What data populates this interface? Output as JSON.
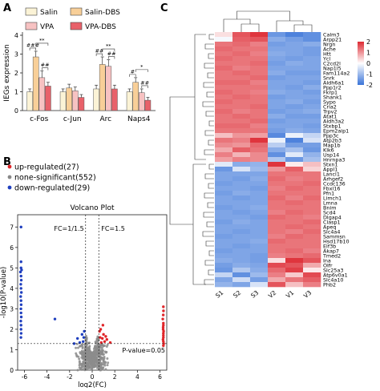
{
  "panels": {
    "a": "A",
    "b": "B",
    "c": "C"
  },
  "chart_data": [
    {
      "panel": "A",
      "type": "bar",
      "ylabel": "IEGs expression",
      "ylim": [
        0,
        4
      ],
      "yticks": [
        0,
        1,
        2,
        3,
        4
      ],
      "categories": [
        "c-Fos",
        "c-Jun",
        "Arc",
        "Naps4"
      ],
      "series": [
        {
          "name": "Salin",
          "color": "#fbf3d6",
          "values": [
            1.0,
            1.0,
            1.15,
            1.0
          ],
          "errors": [
            0.15,
            0.15,
            0.2,
            0.15
          ]
        },
        {
          "name": "Salin-DBS",
          "color": "#f8cf98",
          "values": [
            2.85,
            1.2,
            2.45,
            1.5
          ],
          "errors": [
            0.3,
            0.2,
            0.4,
            0.25
          ]
        },
        {
          "name": "VPA",
          "color": "#f7c2c2",
          "values": [
            1.75,
            1.05,
            2.35,
            0.95
          ],
          "errors": [
            0.35,
            0.2,
            0.35,
            0.2
          ]
        },
        {
          "name": "VPA-DBS",
          "color": "#e8616a",
          "values": [
            1.3,
            0.7,
            1.15,
            0.55
          ],
          "errors": [
            0.2,
            0.15,
            0.2,
            0.15
          ]
        }
      ],
      "significance": [
        {
          "category": "c-Fos",
          "label": "###"
        },
        {
          "category": "c-Fos",
          "label": "**"
        },
        {
          "category": "c-Fos",
          "label": "##"
        },
        {
          "category": "Arc",
          "label": "##"
        },
        {
          "category": "Arc",
          "label": "**"
        },
        {
          "category": "Arc",
          "label": "##"
        },
        {
          "category": "Naps4",
          "label": "#"
        },
        {
          "category": "Naps4",
          "label": "*"
        },
        {
          "category": "Naps4",
          "label": "##"
        }
      ]
    },
    {
      "panel": "B",
      "type": "scatter",
      "title": "Volcano Plot",
      "xlabel": "log2(FC)",
      "ylabel": "-log10(P-value)",
      "xlim": [
        -6.6,
        6.6
      ],
      "ylim": [
        0,
        7.6
      ],
      "xticks": [
        -6,
        -4,
        -2,
        0,
        2,
        4,
        6
      ],
      "yticks": [
        0,
        1,
        2,
        3,
        4,
        5,
        6,
        7
      ],
      "legend": [
        {
          "label": "up-regulated(27)",
          "color": "#e0262a"
        },
        {
          "label": "none-significant(552)",
          "color": "#888888"
        },
        {
          "label": "down-regulated(29)",
          "color": "#1f3fbf"
        }
      ],
      "thresholds": {
        "fc_low_label": "FC=1/1.5",
        "fc_high_label": "FC=1.5",
        "fc_low": -0.585,
        "fc_high": 0.585,
        "p_label": "P-value=0.05",
        "p": 1.3
      },
      "down_points": [
        [
          -6.3,
          5.0
        ],
        [
          -6.25,
          4.9
        ],
        [
          -6.35,
          4.8
        ],
        [
          -6.3,
          4.6
        ],
        [
          -6.28,
          4.4
        ],
        [
          -6.32,
          4.2
        ],
        [
          -6.3,
          4.0
        ],
        [
          -6.27,
          3.8
        ],
        [
          -6.33,
          3.6
        ],
        [
          -6.3,
          3.4
        ],
        [
          -6.29,
          3.2
        ],
        [
          -6.31,
          3.0
        ],
        [
          -6.3,
          2.8
        ],
        [
          -6.28,
          2.6
        ],
        [
          -6.32,
          2.4
        ],
        [
          -6.3,
          2.2
        ],
        [
          -6.3,
          2.0
        ],
        [
          -6.29,
          1.8
        ],
        [
          -6.31,
          1.6
        ],
        [
          -6.3,
          7.0
        ],
        [
          -6.3,
          5.3
        ],
        [
          -3.3,
          2.5
        ],
        [
          -1.3,
          1.55
        ],
        [
          -1.1,
          1.35
        ],
        [
          -0.9,
          1.75
        ],
        [
          -0.8,
          1.4
        ],
        [
          -1.6,
          1.3
        ],
        [
          -0.75,
          1.6
        ],
        [
          -0.7,
          1.9
        ]
      ],
      "up_points": [
        [
          6.25,
          2.5
        ],
        [
          6.3,
          2.3
        ],
        [
          6.28,
          2.1
        ],
        [
          6.32,
          1.9
        ],
        [
          6.3,
          1.7
        ],
        [
          6.27,
          1.5
        ],
        [
          6.33,
          1.3
        ],
        [
          6.3,
          1.2
        ],
        [
          6.29,
          2.7
        ],
        [
          6.31,
          2.9
        ],
        [
          6.3,
          3.1
        ],
        [
          6.28,
          2.0
        ],
        [
          6.3,
          1.4
        ],
        [
          6.3,
          1.8
        ],
        [
          6.3,
          1.6
        ],
        [
          6.3,
          2.2
        ],
        [
          0.7,
          1.6
        ],
        [
          0.8,
          1.35
        ],
        [
          0.9,
          1.55
        ],
        [
          1.0,
          1.75
        ],
        [
          1.1,
          1.4
        ],
        [
          1.3,
          1.5
        ],
        [
          0.65,
          1.9
        ],
        [
          0.75,
          2.0
        ],
        [
          1.6,
          1.35
        ],
        [
          1.2,
          1.65
        ],
        [
          0.95,
          2.2
        ]
      ]
    },
    {
      "panel": "C",
      "type": "heatmap",
      "columns": [
        "S1",
        "S2",
        "S3",
        "V2",
        "V1",
        "V3"
      ],
      "rows": [
        "Calm3",
        "Arpp21",
        "Nrgn",
        "Ache",
        "Htt",
        "Ycl",
        "C2cd2l",
        "Nap1l5",
        "Fam114a2",
        "Snrk",
        "Aldh6a1",
        "Ppp1r2",
        "Fkrp1",
        "Shank1",
        "Sypo",
        "Cria2",
        "Trpv2",
        "Atat1",
        "Aldh3a2",
        "Stxbp1",
        "Epm2aip1",
        "Ppp3c",
        "Atp2b3",
        "Map1b",
        "Klk6",
        "Usp14",
        "Hnrnpa3",
        "Stxn1",
        "Appl1",
        "Lancl1",
        "Arhgef2",
        "Ccdc136",
        "Fbxl16",
        "Pfn1",
        "Limch1",
        "Lmna",
        "Bnim",
        "Scd4",
        "Dlgap4",
        "Clasp1",
        "Apeq",
        "Slc4a4",
        "Sammsn",
        "Hsd17b10",
        "Elf3b",
        "Akap7",
        "Tmed2",
        "Ina",
        "Olfr",
        "Slc25a3",
        "Atp6v0a1",
        "Slc4a10",
        "Phb2"
      ],
      "values": [
        [
          0.3,
          1.6,
          1.9,
          -1.5,
          -1.8,
          -1.6
        ],
        [
          -0.1,
          1.5,
          1.6,
          -1.2,
          -1.4,
          -1.6
        ],
        [
          1.3,
          1.4,
          1.2,
          -1.4,
          -1.3,
          -1.2
        ],
        [
          1.4,
          1.3,
          1.3,
          -1.3,
          -1.3,
          -1.4
        ],
        [
          1.3,
          1.4,
          1.2,
          -1.2,
          -1.3,
          -1.4
        ],
        [
          1.4,
          1.3,
          1.3,
          -1.3,
          -1.4,
          -1.3
        ],
        [
          1.3,
          1.3,
          1.4,
          -1.4,
          -1.2,
          -1.3
        ],
        [
          1.4,
          1.2,
          1.3,
          -1.3,
          -1.3,
          -1.3
        ],
        [
          1.3,
          1.4,
          1.3,
          -1.2,
          -1.4,
          -1.4
        ],
        [
          1.3,
          1.3,
          1.4,
          -1.4,
          -1.3,
          -1.3
        ],
        [
          1.4,
          1.4,
          1.2,
          -1.3,
          -1.3,
          -1.4
        ],
        [
          1.3,
          1.3,
          1.3,
          -1.3,
          -1.4,
          -1.2
        ],
        [
          1.4,
          1.3,
          1.2,
          -1.2,
          -1.3,
          -1.4
        ],
        [
          1.3,
          1.4,
          1.3,
          -1.4,
          -1.3,
          -1.3
        ],
        [
          1.4,
          1.3,
          1.3,
          -1.3,
          -1.2,
          -1.4
        ],
        [
          1.3,
          1.3,
          1.4,
          -1.3,
          -1.4,
          -1.3
        ],
        [
          1.4,
          1.2,
          1.3,
          -1.4,
          -1.3,
          -1.2
        ],
        [
          1.3,
          1.4,
          1.3,
          -1.2,
          -1.4,
          -1.4
        ],
        [
          1.3,
          1.3,
          1.4,
          -1.4,
          -1.3,
          -1.3
        ],
        [
          1.4,
          1.4,
          1.2,
          -1.3,
          -1.3,
          -1.4
        ],
        [
          1.3,
          1.3,
          1.3,
          -1.4,
          -1.2,
          -1.3
        ],
        [
          0.6,
          1.0,
          0.9,
          -1.7,
          -0.2,
          -0.6
        ],
        [
          1.3,
          1.2,
          1.9,
          -0.2,
          -1.8,
          -0.4
        ],
        [
          1.1,
          1.0,
          1.4,
          -0.7,
          -1.4,
          -1.4
        ],
        [
          0.8,
          1.5,
          1.3,
          -1.2,
          -0.9,
          -1.5
        ],
        [
          1.2,
          0.7,
          1.1,
          -1.6,
          -0.3,
          -1.1
        ],
        [
          0.9,
          1.2,
          1.1,
          -0.8,
          -1.5,
          -0.9
        ],
        [
          -0.3,
          -1.2,
          -1.1,
          1.9,
          0.2,
          0.6
        ],
        [
          -1.5,
          -0.4,
          -1.0,
          1.0,
          1.5,
          0.4
        ],
        [
          -1.3,
          -1.3,
          -1.3,
          1.3,
          1.3,
          1.3
        ],
        [
          -1.3,
          -1.4,
          -1.2,
          1.4,
          1.2,
          1.3
        ],
        [
          -1.4,
          -1.3,
          -1.3,
          1.3,
          1.3,
          1.4
        ],
        [
          -1.3,
          -1.3,
          -1.4,
          1.2,
          1.4,
          1.3
        ],
        [
          -1.4,
          -1.2,
          -1.3,
          1.3,
          1.3,
          1.3
        ],
        [
          -1.3,
          -1.4,
          -1.3,
          1.4,
          1.2,
          1.4
        ],
        [
          -1.3,
          -1.3,
          -1.3,
          1.3,
          1.4,
          1.3
        ],
        [
          -1.4,
          -1.3,
          -1.2,
          1.3,
          1.3,
          1.3
        ],
        [
          -1.3,
          -1.4,
          -1.3,
          1.2,
          1.4,
          1.3
        ],
        [
          -1.3,
          -1.3,
          -1.4,
          1.4,
          1.3,
          1.2
        ],
        [
          -1.4,
          -1.2,
          -1.3,
          1.3,
          1.3,
          1.4
        ],
        [
          -1.3,
          -1.3,
          -1.3,
          1.3,
          1.4,
          1.3
        ],
        [
          -1.3,
          -1.4,
          -1.3,
          1.3,
          1.2,
          1.4
        ],
        [
          -1.4,
          -1.3,
          -1.3,
          1.2,
          1.4,
          1.3
        ],
        [
          -1.3,
          -1.3,
          -1.2,
          1.4,
          1.3,
          1.3
        ],
        [
          -1.3,
          -1.4,
          -1.3,
          1.3,
          1.3,
          1.3
        ],
        [
          -1.4,
          -1.3,
          -1.3,
          1.3,
          1.4,
          1.2
        ],
        [
          -1.3,
          -1.3,
          -1.4,
          1.2,
          1.3,
          1.4
        ],
        [
          -1.2,
          -1.3,
          -1.4,
          0.3,
          1.9,
          1.6
        ],
        [
          -1.4,
          -1.2,
          -1.3,
          1.7,
          1.6,
          0.8
        ],
        [
          -1.5,
          -0.8,
          -1.2,
          1.4,
          1.8,
          0.2
        ],
        [
          -0.6,
          -1.6,
          -1.0,
          1.2,
          0.5,
          1.7
        ],
        [
          -1.3,
          -0.5,
          -1.4,
          0.8,
          1.3,
          1.5
        ],
        [
          -1.1,
          -1.3,
          -0.4,
          1.6,
          0.6,
          1.2
        ]
      ],
      "colorbar": {
        "ticks": [
          2,
          1,
          0,
          -1,
          -2
        ],
        "low": "#3a74d8",
        "mid": "#ffffff",
        "high": "#dd2a33"
      }
    }
  ]
}
